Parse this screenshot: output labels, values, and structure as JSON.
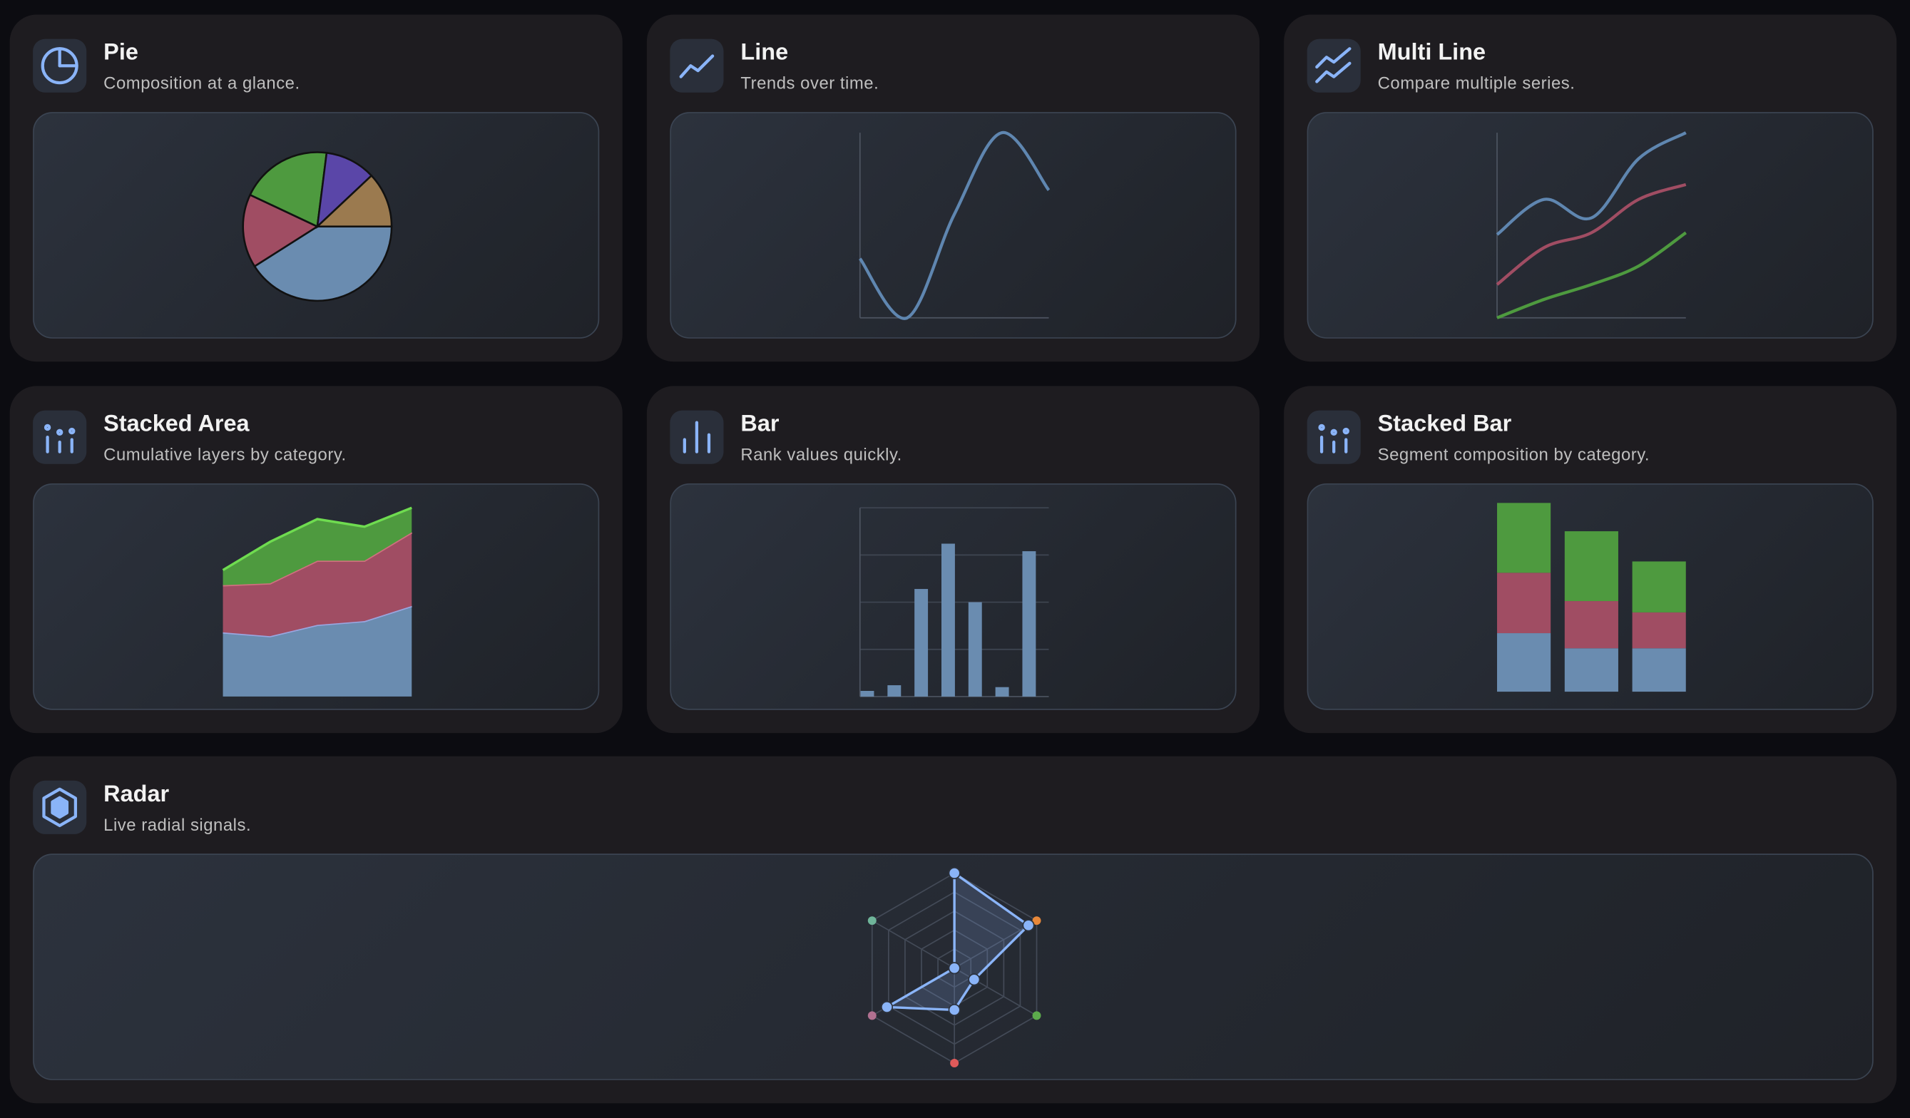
{
  "cards": [
    {
      "title": "Pie",
      "subtitle": "Composition at a glance.",
      "chart": {
        "type": "pie",
        "values": [
          41,
          16,
          20,
          11,
          12
        ],
        "colors": [
          "#6a8cb0",
          "#a04d63",
          "#4e9a3f",
          "#5a46a8",
          "#9b7a4f"
        ]
      }
    },
    {
      "title": "Line",
      "subtitle": "Trends over time.",
      "chart": {
        "type": "line",
        "ylim": [
          0,
          100
        ],
        "values": [
          32,
          0,
          56,
          100,
          69
        ],
        "color": "#5f86b0"
      }
    },
    {
      "title": "Multi Line",
      "subtitle": "Compare multiple series.",
      "chart": {
        "type": "multiline",
        "ylim": [
          0,
          100
        ],
        "series": [
          {
            "color": "#5f86b0",
            "values": [
              45,
              64,
              54,
              86,
              100
            ]
          },
          {
            "color": "#a04d63",
            "values": [
              18,
              38,
              46,
              64,
              72
            ]
          },
          {
            "color": "#4e9a3f",
            "values": [
              0,
              10,
              18,
              28,
              46
            ]
          }
        ]
      }
    },
    {
      "title": "Stacked Area",
      "subtitle": "Cumulative layers by category.",
      "chart": {
        "type": "stackedarea",
        "ylim": [
          0,
          100
        ],
        "series": [
          {
            "color": "#6a8cb0",
            "line": "#9aa6e0",
            "values": [
              34,
              32,
              38,
              40,
              48
            ]
          },
          {
            "color": "#a04d63",
            "line": "#d0707f",
            "values": [
              25,
              28,
              34,
              32,
              39
            ]
          },
          {
            "color": "#4e9a3f",
            "line": "#6fdc50",
            "values": [
              8,
              22,
              22,
              18,
              13
            ]
          }
        ]
      }
    },
    {
      "title": "Bar",
      "subtitle": "Rank values quickly.",
      "chart": {
        "type": "bar",
        "ylim": [
          0,
          100
        ],
        "gridlines": [
          25,
          50,
          75,
          100
        ],
        "values": [
          3,
          6,
          57,
          81,
          50,
          5,
          77
        ],
        "color": "#6a8cb0"
      }
    },
    {
      "title": "Stacked Bar",
      "subtitle": "Segment composition by category.",
      "chart": {
        "type": "stackedbar",
        "ylim": [
          0,
          100
        ],
        "series": [
          {
            "color": "#6a8cb0",
            "values": [
              31,
              23,
              23
            ]
          },
          {
            "color": "#a04d63",
            "values": [
              32,
              25,
              19
            ]
          },
          {
            "color": "#4e9a3f",
            "values": [
              37,
              37,
              27
            ]
          }
        ]
      }
    },
    {
      "title": "Radar",
      "subtitle": "Live radial signals.",
      "chart": {
        "type": "radar",
        "rlim": [
          0,
          100
        ],
        "values": [
          100,
          90,
          24,
          44,
          82,
          0
        ],
        "color": "#8ab4f8",
        "axis_colors": [
          "#8ab4f8",
          "#e8883a",
          "#5cab4c",
          "#e05a5a",
          "#b07090",
          "#6fb59a"
        ]
      }
    }
  ]
}
